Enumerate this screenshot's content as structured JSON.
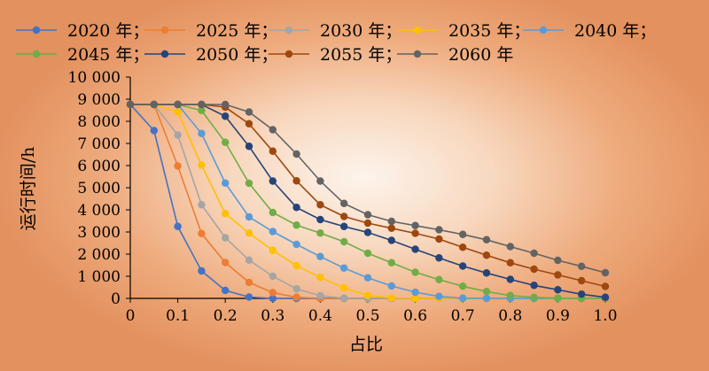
{
  "chart_data": {
    "type": "line",
    "xlabel": "占比",
    "ylabel": "运行时间/h",
    "xlim": [
      0,
      1.0
    ],
    "ylim": [
      0,
      10000
    ],
    "x_ticks": [
      "0",
      "0.1",
      "0.2",
      "0.3",
      "0.4",
      "0.5",
      "0.6",
      "0.7",
      "0.8",
      "0.9",
      "1.0"
    ],
    "y_ticks": [
      "0",
      "1 000",
      "2 000",
      "3 000",
      "4 000",
      "5 000",
      "6 000",
      "7 000",
      "8 000",
      "9 000",
      "10 000"
    ],
    "legend_position": "top",
    "x": [
      0,
      0.05,
      0.1,
      0.15,
      0.2,
      0.25,
      0.3,
      0.35,
      0.4,
      0.45,
      0.5,
      0.55,
      0.6,
      0.65,
      0.7,
      0.75,
      0.8,
      0.85,
      0.9,
      0.95,
      1.0
    ],
    "series": [
      {
        "name": "2020 年；",
        "color": "#4472c4",
        "values": [
          8760,
          7580,
          3250,
          1240,
          360,
          60,
          0,
          0,
          0,
          0,
          0,
          0,
          0,
          0,
          0,
          0,
          0,
          0,
          0,
          0,
          0
        ]
      },
      {
        "name": "2025 年；",
        "color": "#ed7d31",
        "values": [
          8760,
          8760,
          5980,
          2930,
          1620,
          720,
          260,
          50,
          0,
          0,
          0,
          0,
          0,
          0,
          0,
          0,
          0,
          0,
          0,
          0,
          0
        ]
      },
      {
        "name": "2030 年；",
        "color": "#a5a5a5",
        "values": [
          8760,
          8760,
          7380,
          4230,
          2740,
          1730,
          1000,
          430,
          120,
          10,
          0,
          0,
          0,
          0,
          0,
          0,
          0,
          0,
          0,
          0,
          0
        ]
      },
      {
        "name": "2035 年；",
        "color": "#ffc000",
        "values": [
          8760,
          8760,
          8420,
          6020,
          3830,
          2950,
          2170,
          1480,
          950,
          480,
          130,
          20,
          0,
          0,
          0,
          0,
          0,
          0,
          0,
          0,
          0
        ]
      },
      {
        "name": "2040 年；",
        "color": "#5b9bd5",
        "values": [
          8760,
          8760,
          8760,
          7450,
          5210,
          3680,
          3020,
          2440,
          1890,
          1370,
          930,
          560,
          280,
          90,
          10,
          0,
          0,
          0,
          0,
          0,
          0
        ]
      },
      {
        "name": "2045 年；",
        "color": "#70ad47",
        "values": [
          8760,
          8760,
          8760,
          8490,
          7050,
          5200,
          3880,
          3310,
          2950,
          2560,
          2040,
          1610,
          1180,
          850,
          550,
          310,
          130,
          50,
          10,
          0,
          0
        ]
      },
      {
        "name": "2050 年；",
        "color": "#264478",
        "values": [
          8760,
          8760,
          8760,
          8760,
          8230,
          6870,
          5300,
          4110,
          3560,
          3250,
          2980,
          2620,
          2220,
          1830,
          1460,
          1150,
          860,
          590,
          390,
          190,
          50
        ]
      },
      {
        "name": "2055 年；",
        "color": "#9e480e",
        "values": [
          8760,
          8760,
          8760,
          8760,
          8640,
          7890,
          6650,
          5310,
          4230,
          3700,
          3400,
          3170,
          2940,
          2680,
          2310,
          1950,
          1610,
          1320,
          1060,
          800,
          540
        ]
      },
      {
        "name": "2060 年",
        "color": "#636363",
        "values": [
          8760,
          8760,
          8760,
          8760,
          8760,
          8420,
          7620,
          6520,
          5300,
          4290,
          3780,
          3480,
          3290,
          3100,
          2890,
          2650,
          2340,
          2040,
          1720,
          1450,
          1160
        ]
      }
    ]
  }
}
